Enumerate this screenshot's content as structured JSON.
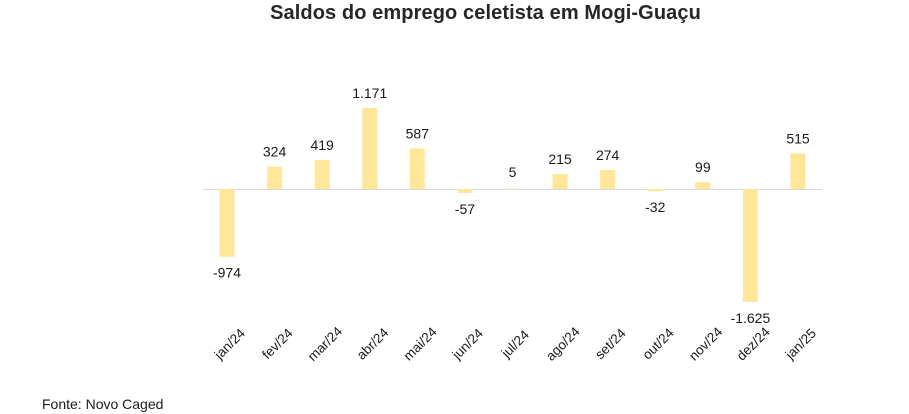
{
  "chart_data": {
    "type": "bar",
    "title": "Saldos do emprego celetista em Mogi-Guaçu",
    "xlabel": "",
    "ylabel": "",
    "categories": [
      "jan/24",
      "fev/24",
      "mar/24",
      "abr/24",
      "mai/24",
      "jun/24",
      "jul/24",
      "ago/24",
      "set/24",
      "out/24",
      "nov/24",
      "dez/24",
      "jan/25"
    ],
    "values": [
      -974,
      324,
      419,
      1171,
      587,
      -57,
      5,
      215,
      274,
      -32,
      99,
      -1625,
      515
    ],
    "data_labels": [
      "-974",
      "324",
      "419",
      "1.171",
      "587",
      "-57",
      "5",
      "215",
      "274",
      "-32",
      "99",
      "-1.625",
      "515"
    ],
    "ylim": [
      -1625,
      1171
    ],
    "grid": false,
    "legend": "none",
    "bar_color": "#FFE699",
    "axis_color": "#D9D9D9"
  },
  "source": "Fonte: Novo Caged"
}
